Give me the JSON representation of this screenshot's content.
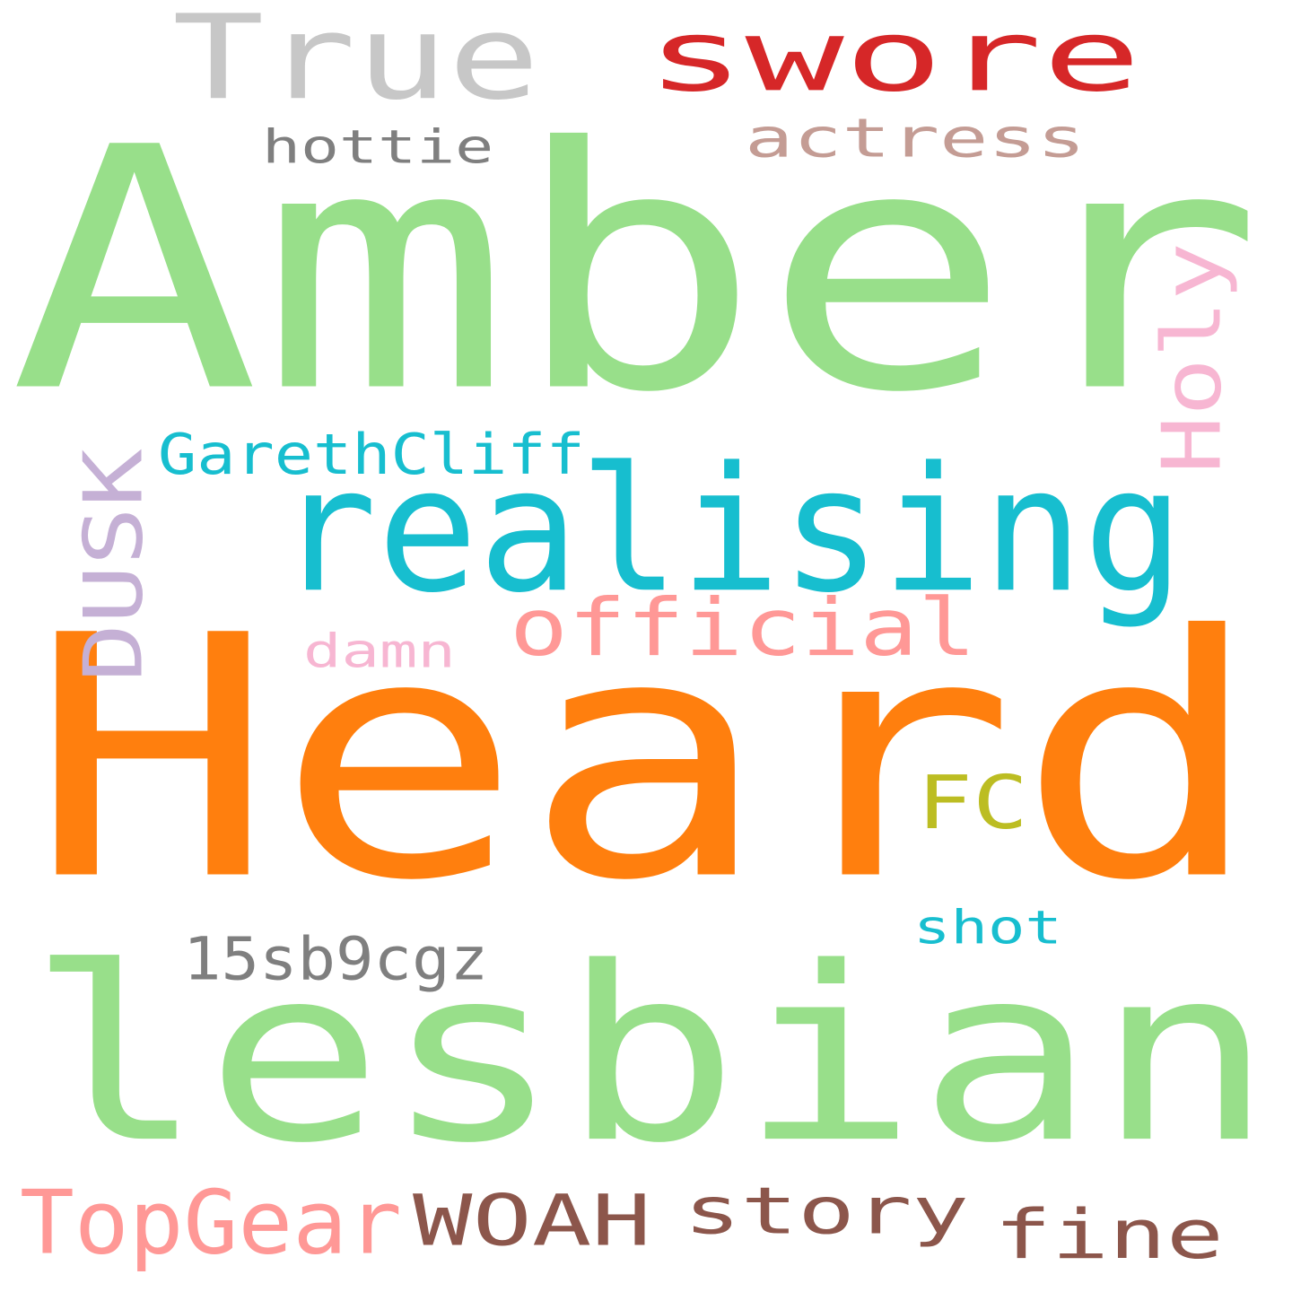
{
  "cloud": {
    "background": "#ffffff",
    "words": [
      {
        "key": "amber",
        "text": "Amber",
        "color": "#98df8a"
      },
      {
        "key": "heard",
        "text": "Heard",
        "color": "#ff7f0e"
      },
      {
        "key": "lesbian",
        "text": "lesbian",
        "color": "#98df8a"
      },
      {
        "key": "realising",
        "text": "realising",
        "color": "#17becf"
      },
      {
        "key": "true",
        "text": "True",
        "color": "#c7c7c7"
      },
      {
        "key": "swore",
        "text": "swore",
        "color": "#d62728"
      },
      {
        "key": "actress",
        "text": "actress",
        "color": "#c49c94"
      },
      {
        "key": "hottie",
        "text": "hottie",
        "color": "#7f7f7f"
      },
      {
        "key": "holy",
        "text": "Holy",
        "color": "#f7b6d2"
      },
      {
        "key": "garethcliff",
        "text": "GarethCliff",
        "color": "#17becf"
      },
      {
        "key": "dusk",
        "text": "DUSK",
        "color": "#c5b0d5"
      },
      {
        "key": "official",
        "text": "official",
        "color": "#ff9896"
      },
      {
        "key": "damn",
        "text": "damn",
        "color": "#f7b6d2"
      },
      {
        "key": "fc",
        "text": "FC",
        "color": "#bcbd22"
      },
      {
        "key": "shot",
        "text": "shot",
        "color": "#17becf"
      },
      {
        "key": "15sb9cgz",
        "text": "15sb9cgz",
        "color": "#7f7f7f"
      },
      {
        "key": "topgear",
        "text": "TopGear",
        "color": "#ff9896"
      },
      {
        "key": "woah",
        "text": "WOAH",
        "color": "#8c564b"
      },
      {
        "key": "story",
        "text": "story",
        "color": "#8c564b"
      },
      {
        "key": "fine",
        "text": "fine",
        "color": "#8c564b"
      }
    ]
  }
}
